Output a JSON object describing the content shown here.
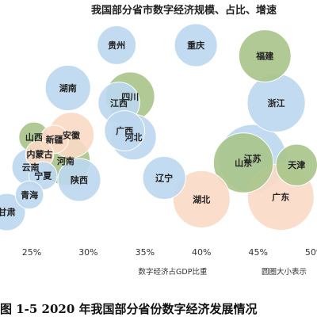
{
  "chart_data": {
    "type": "scatter",
    "title": "我国部分省市数字经济规模、占比、增速",
    "xlabel": "数字经济占GDP比重",
    "size_note": "圆圈大小表示",
    "caption": "图 1-5 2020 年我国部分省份数字经济发展情况",
    "xlim": [
      0.222,
      0.502
    ],
    "xticks": [
      "25%",
      "30%",
      "35%",
      "40%",
      "45%",
      "50%"
    ],
    "xtick_values": [
      0.25,
      0.3,
      0.35,
      0.4,
      0.45,
      0.5
    ],
    "colors": {
      "blue": "#bdd7ee",
      "green": "#a9c48a",
      "orange": "#f9d9c4"
    },
    "points": [
      {
        "name": "贵州",
        "x": 0.325,
        "y": 0.9,
        "size": 11,
        "color": "blue"
      },
      {
        "name": "重庆",
        "x": 0.395,
        "y": 0.9,
        "size": 14,
        "color": "blue"
      },
      {
        "name": "福建",
        "x": 0.456,
        "y": 0.85,
        "size": 22,
        "color": "green"
      },
      {
        "name": "湖南",
        "x": 0.282,
        "y": 0.7,
        "size": 16,
        "color": "blue"
      },
      {
        "name": "四川",
        "x": 0.337,
        "y": 0.66,
        "size": 19,
        "color": "green"
      },
      {
        "name": "江西",
        "x": 0.327,
        "y": 0.63,
        "size": 13,
        "color": "blue"
      },
      {
        "name": "浙江",
        "x": 0.466,
        "y": 0.63,
        "size": 28,
        "color": "blue"
      },
      {
        "name": "安徽",
        "x": 0.285,
        "y": 0.48,
        "size": 16,
        "color": "orange"
      },
      {
        "name": "广西",
        "x": 0.332,
        "y": 0.5,
        "size": 12,
        "color": "blue"
      },
      {
        "name": "河北",
        "x": 0.34,
        "y": 0.47,
        "size": 16,
        "color": "blue"
      },
      {
        "name": "山西",
        "x": 0.252,
        "y": 0.47,
        "size": 6,
        "color": "green"
      },
      {
        "name": "新疆",
        "x": 0.27,
        "y": 0.46,
        "size": 5,
        "color": "orange"
      },
      {
        "name": "内蒙古",
        "x": 0.257,
        "y": 0.39,
        "size": 5,
        "color": "orange"
      },
      {
        "name": "江苏",
        "x": 0.445,
        "y": 0.37,
        "size": 40,
        "color": "blue"
      },
      {
        "name": "河南",
        "x": 0.28,
        "y": 0.36,
        "size": 19,
        "color": "green"
      },
      {
        "name": "山东",
        "x": 0.437,
        "y": 0.35,
        "size": 30,
        "color": "green"
      },
      {
        "name": "天津",
        "x": 0.484,
        "y": 0.34,
        "size": 13,
        "color": "green"
      },
      {
        "name": "云南",
        "x": 0.249,
        "y": 0.33,
        "size": 10,
        "color": "blue"
      },
      {
        "name": "宁夏",
        "x": 0.26,
        "y": 0.29,
        "size": 5,
        "color": "blue"
      },
      {
        "name": "陕西",
        "x": 0.292,
        "y": 0.27,
        "size": 14,
        "color": "blue"
      },
      {
        "name": "辽宁",
        "x": 0.367,
        "y": 0.28,
        "size": 14,
        "color": "blue"
      },
      {
        "name": "湖北",
        "x": 0.4,
        "y": 0.18,
        "size": 27,
        "color": "orange"
      },
      {
        "name": "广东",
        "x": 0.47,
        "y": 0.19,
        "size": 38,
        "color": "orange"
      },
      {
        "name": "青海",
        "x": 0.248,
        "y": 0.2,
        "size": 5,
        "color": "blue"
      },
      {
        "name": "甘肃",
        "x": 0.228,
        "y": 0.12,
        "size": 10,
        "color": "blue"
      }
    ]
  }
}
